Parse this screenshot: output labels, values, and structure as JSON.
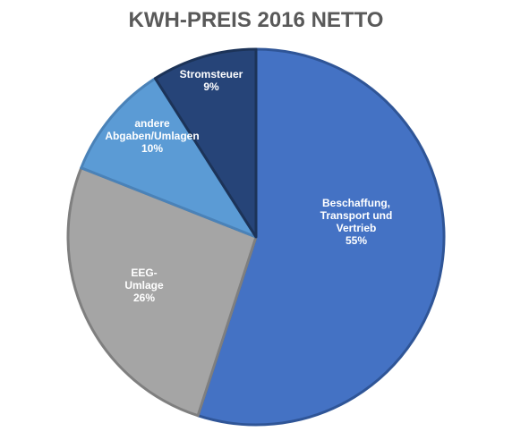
{
  "chart_data": {
    "type": "pie",
    "title": "KWH-PREIS 2016 NETTO",
    "start_angle_deg": 0,
    "direction": "clockwise",
    "slices": [
      {
        "label_lines": [
          "Beschaffung,",
          "Transport und",
          "Vertrieb"
        ],
        "percent_label": "55%",
        "value": 55,
        "color": "#4472C4",
        "border": "#2F5597"
      },
      {
        "label_lines": [
          "EEG-",
          "Umlage"
        ],
        "percent_label": "26%",
        "value": 26,
        "color": "#A5A5A5",
        "border": "#7F7F7F"
      },
      {
        "label_lines": [
          "andere",
          "Abgaben/Umlagen"
        ],
        "percent_label": "10%",
        "value": 10,
        "color": "#5B9BD5",
        "border": "#4A82B8"
      },
      {
        "label_lines": [
          "Stromsteuer"
        ],
        "percent_label": "9%",
        "value": 9,
        "color": "#264478",
        "border": "#1C3358"
      }
    ]
  }
}
